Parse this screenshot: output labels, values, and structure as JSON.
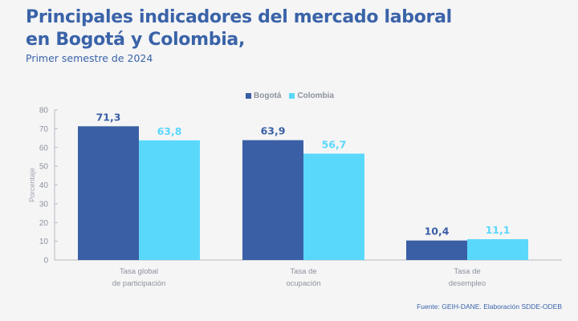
{
  "header": {
    "title_line1": "Principales indicadores del mercado laboral",
    "title_line2": "en Bogotá y Colombia,",
    "subtitle": "Primer semestre de 2024"
  },
  "source": "Fuente: GEIH-DANE. Elaboración SDDE-ODEB",
  "chart_data": {
    "type": "bar",
    "title": "Principales indicadores del mercado laboral en Bogotá y Colombia,",
    "subtitle": "Primer semestre de 2024",
    "xlabel": "",
    "ylabel": "Porcentaje",
    "ylim": [
      0,
      80
    ],
    "yticks": [
      0,
      10,
      20,
      30,
      40,
      50,
      60,
      70,
      80
    ],
    "grid": false,
    "legend_position": "top-center",
    "categories": [
      [
        "Tasa global",
        "de participación"
      ],
      [
        "Tasa de",
        "ocupación"
      ],
      [
        "Tasa de",
        "desempleo"
      ]
    ],
    "series": [
      {
        "name": "Bogotá",
        "color": "#3a5fa5",
        "values": [
          71.3,
          63.9,
          10.4
        ],
        "labels": [
          "71,3",
          "63,9",
          "10,4"
        ]
      },
      {
        "name": "Colombia",
        "color": "#5ad8fc",
        "values": [
          63.8,
          56.7,
          11.1
        ],
        "labels": [
          "63,8",
          "56,7",
          "11,1"
        ]
      }
    ]
  }
}
